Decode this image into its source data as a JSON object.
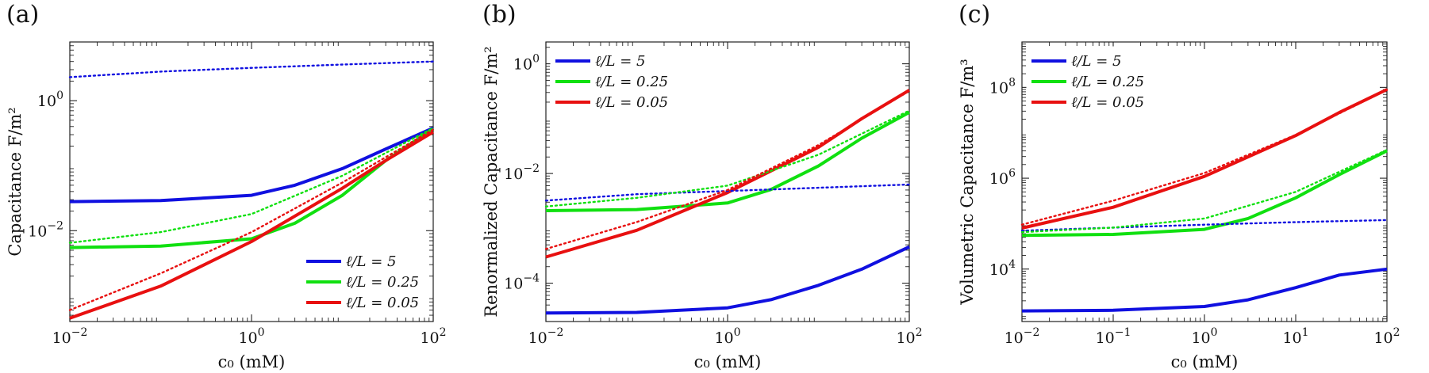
{
  "chart_data": [
    {
      "type": "line",
      "panel_label": "(a)",
      "xlabel": "c₀ (mM)",
      "ylabel": "Capacitance F/m²",
      "xscale": "log",
      "yscale": "log",
      "xlim": [
        0.01,
        100
      ],
      "ylim": [
        0.0004,
        8
      ],
      "xticks": [
        {
          "v": 0.01,
          "b": "10",
          "e": "−2"
        },
        {
          "v": 1,
          "b": "10",
          "e": "0"
        },
        {
          "v": 100,
          "b": "10",
          "e": "2"
        }
      ],
      "yticks": [
        {
          "v": 0.01,
          "b": "10",
          "e": "−2"
        },
        {
          "v": 1,
          "b": "10",
          "e": "0"
        }
      ],
      "legend_position": "bottom-right",
      "series": [
        {
          "name": "ℓ/L = 5",
          "color": "#1010e0",
          "style": "solid",
          "x": [
            0.01,
            0.1,
            1,
            3,
            10,
            30,
            100
          ],
          "y": [
            0.028,
            0.029,
            0.035,
            0.05,
            0.09,
            0.18,
            0.38
          ]
        },
        {
          "name": "ℓ/L = 0.25",
          "color": "#10e010",
          "style": "solid",
          "x": [
            0.01,
            0.1,
            1,
            3,
            10,
            30,
            100
          ],
          "y": [
            0.0055,
            0.0058,
            0.0075,
            0.013,
            0.035,
            0.12,
            0.37
          ]
        },
        {
          "name": "ℓ/L = 0.05",
          "color": "#e81010",
          "style": "solid",
          "x": [
            0.01,
            0.1,
            1,
            10,
            30,
            100
          ],
          "y": [
            0.00045,
            0.0014,
            0.0068,
            0.045,
            0.12,
            0.33
          ]
        },
        {
          "name": "",
          "color": "#1010e0",
          "style": "dotted",
          "x": [
            0.01,
            0.1,
            1,
            10,
            100
          ],
          "y": [
            2.3,
            2.8,
            3.2,
            3.6,
            4.0
          ]
        },
        {
          "name": "",
          "color": "#10e010",
          "style": "dotted",
          "x": [
            0.01,
            0.1,
            1,
            10,
            100
          ],
          "y": [
            0.0065,
            0.0095,
            0.018,
            0.07,
            0.38
          ]
        },
        {
          "name": "",
          "color": "#e81010",
          "style": "dotted",
          "x": [
            0.01,
            0.1,
            1,
            10,
            100
          ],
          "y": [
            0.0006,
            0.0022,
            0.0095,
            0.055,
            0.36
          ]
        }
      ]
    },
    {
      "type": "line",
      "panel_label": "(b)",
      "xlabel": "c₀ (mM)",
      "ylabel": "Renormalized Capacitance F/m²",
      "xscale": "log",
      "yscale": "log",
      "xlim": [
        0.01,
        100
      ],
      "ylim": [
        2e-05,
        2.5
      ],
      "xticks": [
        {
          "v": 0.01,
          "b": "10",
          "e": "−2"
        },
        {
          "v": 1,
          "b": "10",
          "e": "0"
        },
        {
          "v": 100,
          "b": "10",
          "e": "2"
        }
      ],
      "yticks": [
        {
          "v": 0.0001,
          "b": "10",
          "e": "−4"
        },
        {
          "v": 0.01,
          "b": "10",
          "e": "−2"
        },
        {
          "v": 1,
          "b": "10",
          "e": "0"
        }
      ],
      "legend_position": "top-left",
      "series": [
        {
          "name": "ℓ/L = 5",
          "color": "#1010e0",
          "style": "solid",
          "x": [
            0.01,
            0.1,
            1,
            3,
            10,
            30,
            100
          ],
          "y": [
            2.85e-05,
            2.93e-05,
            3.55e-05,
            5e-05,
            9.15e-05,
            0.00018,
            0.00046
          ]
        },
        {
          "name": "ℓ/L = 0.25",
          "color": "#10e010",
          "style": "solid",
          "x": [
            0.01,
            0.1,
            1,
            3,
            10,
            30,
            100
          ],
          "y": [
            0.0021,
            0.0022,
            0.0029,
            0.0051,
            0.0137,
            0.044,
            0.13
          ]
        },
        {
          "name": "ℓ/L = 0.05",
          "color": "#e81010",
          "style": "solid",
          "x": [
            0.01,
            0.1,
            1,
            10,
            30,
            100
          ],
          "y": [
            0.0003,
            0.00092,
            0.0045,
            0.03,
            0.1,
            0.33
          ]
        },
        {
          "name": "",
          "color": "#1010e0",
          "style": "dotted",
          "x": [
            0.01,
            0.1,
            1,
            10,
            100
          ],
          "y": [
            0.0032,
            0.0042,
            0.0048,
            0.0055,
            0.0063
          ]
        },
        {
          "name": "",
          "color": "#10e010",
          "style": "dotted",
          "x": [
            0.01,
            0.1,
            1,
            10,
            100
          ],
          "y": [
            0.0025,
            0.0036,
            0.006,
            0.022,
            0.14
          ]
        },
        {
          "name": "",
          "color": "#e81010",
          "style": "dotted",
          "x": [
            0.01,
            0.1,
            1,
            10,
            100
          ],
          "y": [
            0.00042,
            0.0013,
            0.005,
            0.033,
            0.32
          ]
        }
      ]
    },
    {
      "type": "line",
      "panel_label": "(c)",
      "xlabel": "c₀ (mM)",
      "ylabel": "Volumetric Capacitance F/m³",
      "xscale": "log",
      "yscale": "log",
      "xlim": [
        0.01,
        100
      ],
      "ylim": [
        700,
        1000000000
      ],
      "xticks": [
        {
          "v": 0.01,
          "b": "10",
          "e": "−2"
        },
        {
          "v": 0.1,
          "b": "10",
          "e": "−1"
        },
        {
          "v": 1,
          "b": "10",
          "e": "0"
        },
        {
          "v": 10,
          "b": "10",
          "e": "1"
        },
        {
          "v": 100,
          "b": "10",
          "e": "2"
        }
      ],
      "yticks": [
        {
          "v": 10000,
          "b": "10",
          "e": "4"
        },
        {
          "v": 1000000,
          "b": "10",
          "e": "6"
        },
        {
          "v": 100000000,
          "b": "10",
          "e": "8"
        }
      ],
      "legend_position": "top-left",
      "series": [
        {
          "name": "ℓ/L = 5",
          "color": "#1010e0",
          "style": "solid",
          "x": [
            0.01,
            0.1,
            1,
            3,
            10,
            30,
            100
          ],
          "y": [
            1200,
            1240,
            1500,
            2100,
            3900,
            7400,
            10000
          ]
        },
        {
          "name": "ℓ/L = 0.25",
          "color": "#10e010",
          "style": "solid",
          "x": [
            0.01,
            0.1,
            1,
            3,
            10,
            30,
            100
          ],
          "y": [
            55000,
            58000,
            75000,
            130000,
            370000,
            1200000,
            4000000
          ]
        },
        {
          "name": "ℓ/L = 0.05",
          "color": "#e81010",
          "style": "solid",
          "x": [
            0.01,
            0.1,
            1,
            10,
            30,
            100
          ],
          "y": [
            80000,
            230000,
            1100000,
            8700000,
            28000000,
            90000000
          ]
        },
        {
          "name": "",
          "color": "#1010e0",
          "style": "dotted",
          "x": [
            0.01,
            0.1,
            1,
            10,
            100
          ],
          "y": [
            70000,
            82000,
            95000,
            108000,
            120000
          ]
        },
        {
          "name": "",
          "color": "#10e010",
          "style": "dotted",
          "x": [
            0.01,
            0.1,
            1,
            10,
            100
          ],
          "y": [
            65000,
            82000,
            130000,
            500000,
            4200000
          ]
        },
        {
          "name": "",
          "color": "#e81010",
          "style": "dotted",
          "x": [
            0.01,
            0.1,
            1,
            10,
            100
          ],
          "y": [
            95000,
            320000,
            1300000,
            9000000,
            88000000
          ]
        }
      ]
    }
  ]
}
